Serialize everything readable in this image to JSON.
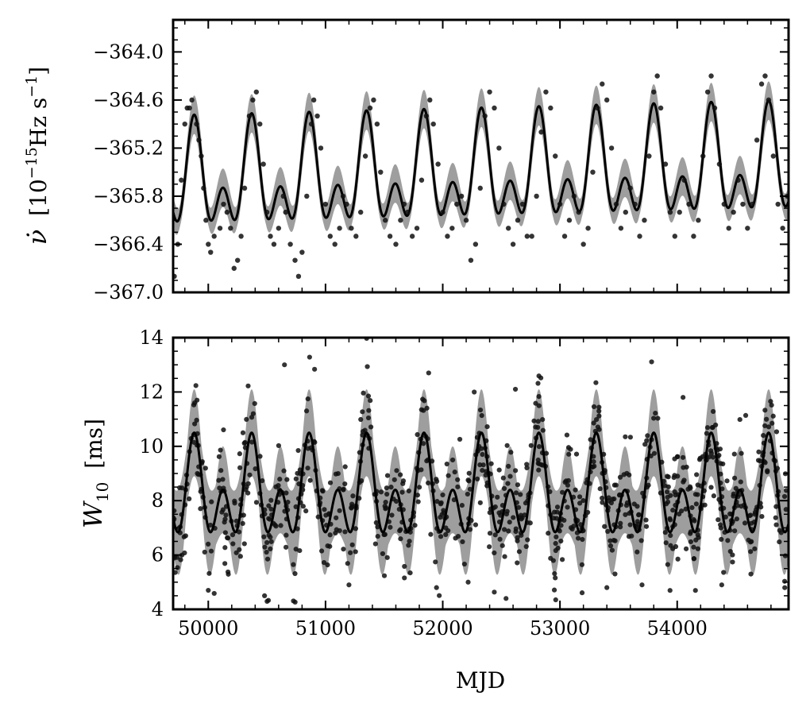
{
  "chart_data": [
    {
      "type": "line",
      "panel": "top",
      "ylabel_main": "ν̇",
      "ylabel_unit": "[10",
      "ylabel_exp": "−15",
      "ylabel_unit2": "Hz s",
      "ylabel_exp2": "−1",
      "ylabel_close": "]",
      "xlim": [
        49700,
        54950
      ],
      "ylim": [
        -367.0,
        -363.6
      ],
      "yticks": [
        -364.0,
        -364.6,
        -365.2,
        -365.8,
        -366.4,
        -367.0
      ],
      "ytick_labels": [
        "−364.0",
        "−364.6",
        "−365.2",
        "−365.8",
        "−366.4",
        "−367.0"
      ],
      "model": {
        "description_free": true,
        "offset": -365.6,
        "trend_per_day": 3.6e-05,
        "amp_main": 0.38,
        "amp_second": 0.48,
        "period_days": 490,
        "phase_mjd": 49880,
        "band_halfwidth": 0.24
      },
      "series": [
        {
          "points": [
            [
              49710,
              -366.8
            ],
            [
              49740,
              -366.4
            ],
            [
              49770,
              -365.6
            ],
            [
              49800,
              -364.9
            ],
            [
              49820,
              -364.7
            ],
            [
              49840,
              -364.7
            ],
            [
              49860,
              -364.6
            ],
            [
              49900,
              -364.9
            ],
            [
              49920,
              -365.1
            ],
            [
              49940,
              -365.3
            ],
            [
              49960,
              -365.7
            ],
            [
              49980,
              -366.1
            ],
            [
              50000,
              -366.4
            ],
            [
              50020,
              -366.5
            ],
            [
              50050,
              -366.3
            ],
            [
              50100,
              -366.2
            ],
            [
              50130,
              -365.9
            ],
            [
              50160,
              -366.0
            ],
            [
              50190,
              -366.2
            ],
            [
              50220,
              -366.7
            ],
            [
              50250,
              -366.6
            ],
            [
              50280,
              -366.3
            ],
            [
              50310,
              -365.7
            ],
            [
              50350,
              -364.8
            ],
            [
              50380,
              -364.6
            ],
            [
              50410,
              -364.5
            ],
            [
              50440,
              -364.9
            ],
            [
              50470,
              -365.4
            ],
            [
              50500,
              -366.0
            ],
            [
              50530,
              -366.3
            ],
            [
              50560,
              -366.4
            ],
            [
              50600,
              -366.2
            ],
            [
              50640,
              -365.8
            ],
            [
              50660,
              -366.0
            ],
            [
              50700,
              -366.4
            ],
            [
              50740,
              -366.6
            ],
            [
              50770,
              -366.8
            ],
            [
              50800,
              -366.5
            ],
            [
              50840,
              -365.8
            ],
            [
              50880,
              -364.9
            ],
            [
              50900,
              -364.6
            ],
            [
              50930,
              -364.8
            ],
            [
              50960,
              -365.2
            ],
            [
              51000,
              -365.9
            ],
            [
              51040,
              -366.3
            ],
            [
              51080,
              -366.4
            ],
            [
              51120,
              -366.2
            ],
            [
              51150,
              -365.8
            ],
            [
              51180,
              -365.9
            ],
            [
              51220,
              -366.2
            ],
            [
              51260,
              -366.3
            ],
            [
              51300,
              -366.0
            ],
            [
              51340,
              -365.3
            ],
            [
              51380,
              -364.7
            ],
            [
              51410,
              -364.6
            ],
            [
              51440,
              -364.9
            ],
            [
              51470,
              -365.5
            ],
            [
              51510,
              -366.1
            ],
            [
              51550,
              -366.3
            ],
            [
              51600,
              -366.4
            ],
            [
              51640,
              -366.1
            ],
            [
              51670,
              -365.9
            ],
            [
              51700,
              -366.0
            ],
            [
              51740,
              -366.3
            ],
            [
              51780,
              -366.2
            ],
            [
              51820,
              -365.6
            ],
            [
              51860,
              -364.8
            ],
            [
              51890,
              -364.6
            ],
            [
              51920,
              -364.9
            ],
            [
              51960,
              -365.4
            ],
            [
              52000,
              -366.0
            ],
            [
              52040,
              -366.3
            ],
            [
              52080,
              -366.2
            ],
            [
              52120,
              -365.9
            ],
            [
              52160,
              -365.8
            ],
            [
              52200,
              -366.1
            ],
            [
              52240,
              -366.6
            ],
            [
              52280,
              -366.4
            ],
            [
              52320,
              -365.7
            ],
            [
              52360,
              -364.8
            ],
            [
              52400,
              -364.5
            ],
            [
              52440,
              -364.7
            ],
            [
              52480,
              -365.2
            ],
            [
              52520,
              -365.9
            ],
            [
              52560,
              -366.2
            ],
            [
              52600,
              -366.4
            ],
            [
              52640,
              -366.1
            ],
            [
              52680,
              -365.9
            ],
            [
              52720,
              -366.3
            ],
            [
              52760,
              -366.3
            ],
            [
              52800,
              -365.8
            ],
            [
              52840,
              -365.0
            ],
            [
              52880,
              -364.5
            ],
            [
              52920,
              -364.7
            ],
            [
              52960,
              -365.3
            ],
            [
              53000,
              -365.9
            ],
            [
              53040,
              -366.3
            ],
            [
              53080,
              -366.1
            ],
            [
              53120,
              -365.8
            ],
            [
              53160,
              -366.0
            ],
            [
              53200,
              -366.4
            ],
            [
              53240,
              -366.2
            ],
            [
              53280,
              -365.5
            ],
            [
              53320,
              -364.7
            ],
            [
              53360,
              -364.4
            ],
            [
              53400,
              -364.6
            ],
            [
              53440,
              -365.2
            ],
            [
              53480,
              -365.9
            ],
            [
              53520,
              -366.2
            ],
            [
              53560,
              -366.0
            ],
            [
              53600,
              -365.7
            ],
            [
              53640,
              -365.9
            ],
            [
              53680,
              -366.3
            ],
            [
              53720,
              -366.1
            ],
            [
              53760,
              -365.3
            ],
            [
              53800,
              -364.5
            ],
            [
              53830,
              -364.3
            ],
            [
              53860,
              -364.7
            ],
            [
              53900,
              -365.4
            ],
            [
              53940,
              -366.0
            ],
            [
              53980,
              -366.3
            ],
            [
              54020,
              -366.0
            ],
            [
              54060,
              -365.6
            ],
            [
              54100,
              -365.9
            ],
            [
              54140,
              -366.3
            ],
            [
              54180,
              -366.1
            ],
            [
              54220,
              -365.3
            ],
            [
              54260,
              -364.5
            ],
            [
              54290,
              -364.3
            ],
            [
              54320,
              -364.7
            ],
            [
              54360,
              -365.4
            ],
            [
              54400,
              -365.9
            ],
            [
              54440,
              -366.2
            ],
            [
              54480,
              -366.0
            ],
            [
              54520,
              -365.6
            ],
            [
              54560,
              -365.9
            ],
            [
              54600,
              -366.2
            ],
            [
              54640,
              -365.9
            ],
            [
              54680,
              -365.1
            ],
            [
              54720,
              -364.4
            ],
            [
              54750,
              -364.3
            ],
            [
              54780,
              -364.6
            ],
            [
              54820,
              -365.3
            ],
            [
              54860,
              -365.9
            ],
            [
              54900,
              -366.2
            ],
            [
              54940,
              -365.8
            ]
          ]
        }
      ]
    },
    {
      "type": "line",
      "panel": "bottom",
      "ylabel_main": "W",
      "ylabel_sub": "10",
      "ylabel_unit": "[ms]",
      "xlabel": "MJD",
      "xlim": [
        49700,
        54950
      ],
      "ylim": [
        4,
        14
      ],
      "yticks": [
        4,
        6,
        8,
        10,
        12,
        14
      ],
      "ytick_labels": [
        "4",
        "6",
        "8",
        "10",
        "12",
        "14"
      ],
      "xticks": [
        50000,
        51000,
        52000,
        53000,
        54000
      ],
      "xtick_labels": [
        "50000",
        "51000",
        "52000",
        "53000",
        "54000"
      ],
      "model": {
        "offset": 8.0,
        "amp_main": 1.9,
        "amp_second": 1.6,
        "period_days": 490,
        "phase_mjd": 49880,
        "band_halfwidth_base": 1.1,
        "band_halfwidth_peak": 1.6
      },
      "scatter_seed": 7,
      "scatter_count": 900,
      "outliers": [
        [
          50650,
          13.0
        ],
        [
          51880,
          12.7
        ],
        [
          52620,
          12.1
        ],
        [
          54050,
          11.8
        ],
        [
          51200,
          4.9
        ],
        [
          50480,
          4.5
        ],
        [
          52540,
          4.4
        ],
        [
          53400,
          4.8
        ],
        [
          54380,
          4.9
        ],
        [
          50000,
          4.7
        ],
        [
          53700,
          4.9
        ]
      ]
    }
  ]
}
